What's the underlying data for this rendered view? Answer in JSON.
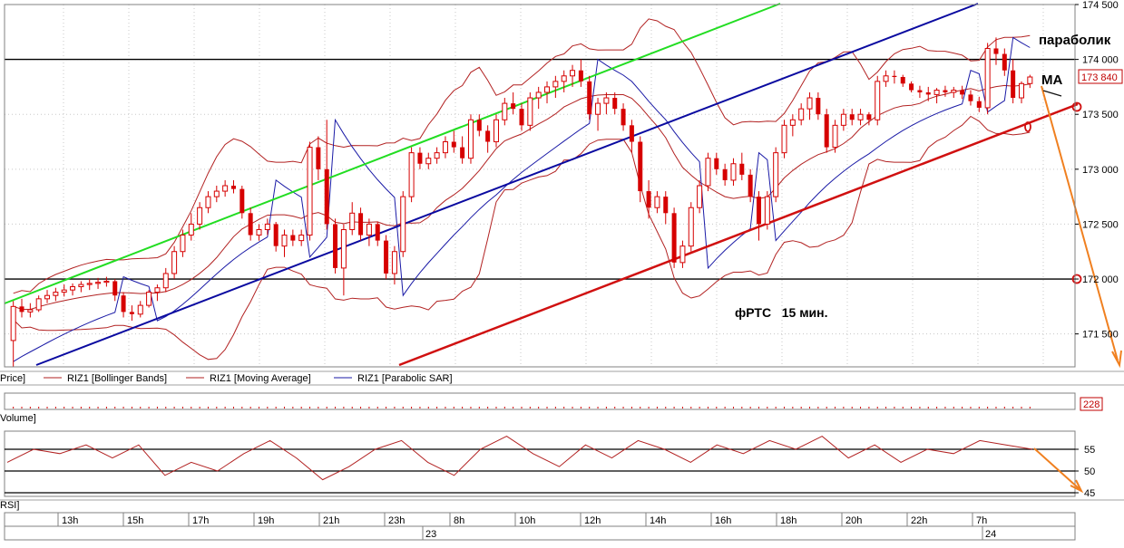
{
  "chart_data": {
    "type": "candlestick",
    "instrument_caption": "фРТС   15 мин.",
    "price_axis": {
      "ylim": [
        171200,
        174500
      ],
      "tick_labels": [
        "174 500",
        "174 000",
        "173 500",
        "173 000",
        "172 500",
        "172 000",
        "171 500"
      ],
      "tick_values": [
        174500,
        174000,
        173500,
        173000,
        172500,
        172000,
        171500
      ],
      "last_price_label": "173 840",
      "last_price": 173840
    },
    "horizontal_levels": [
      174000,
      172000
    ],
    "annotations": {
      "parabolic": "параболик",
      "ma": "MA"
    },
    "legend": {
      "price": "Price]",
      "bollinger": "RIZ1 [Bollinger Bands]",
      "ma": "RIZ1 [Moving Average]",
      "sar": "RIZ1 [Parabolic SAR]"
    },
    "volume_panel": {
      "label": "Volume]",
      "value_label": "228"
    },
    "rsi_panel": {
      "label": "RSI]",
      "levels": [
        55,
        50,
        45
      ],
      "level_labels": [
        "55",
        "50",
        "45"
      ]
    },
    "time_axis": {
      "hour_labels": [
        "13h",
        "15h",
        "17h",
        "19h",
        "21h",
        "23h",
        "8h",
        "10h",
        "12h",
        "14h",
        "16h",
        "18h",
        "20h",
        "22h",
        "7h"
      ],
      "day_labels": [
        "23",
        "24"
      ]
    },
    "candles": [
      [
        171440,
        171800,
        171200,
        171750
      ],
      [
        171750,
        171820,
        171650,
        171700
      ],
      [
        171700,
        171780,
        171650,
        171720
      ],
      [
        171720,
        171850,
        171700,
        171820
      ],
      [
        171820,
        171900,
        171780,
        171850
      ],
      [
        171850,
        171920,
        171800,
        171880
      ],
      [
        171880,
        171950,
        171840,
        171900
      ],
      [
        171900,
        171960,
        171850,
        171930
      ],
      [
        171930,
        171980,
        171880,
        171950
      ],
      [
        171950,
        172000,
        171900,
        171960
      ],
      [
        171960,
        172010,
        171910,
        171970
      ],
      [
        171970,
        172020,
        171930,
        171980
      ],
      [
        171980,
        172000,
        171800,
        171850
      ],
      [
        171850,
        171880,
        171650,
        171700
      ],
      [
        171700,
        171760,
        171620,
        171680
      ],
      [
        171680,
        171800,
        171650,
        171760
      ],
      [
        171760,
        171900,
        171740,
        171880
      ],
      [
        171880,
        171950,
        171800,
        171920
      ],
      [
        171920,
        172100,
        171880,
        172050
      ],
      [
        172050,
        172300,
        172000,
        172250
      ],
      [
        172250,
        172450,
        172200,
        172400
      ],
      [
        172400,
        172600,
        172350,
        172500
      ],
      [
        172500,
        172700,
        172450,
        172650
      ],
      [
        172650,
        172800,
        172600,
        172750
      ],
      [
        172750,
        172850,
        172700,
        172800
      ],
      [
        172800,
        172900,
        172750,
        172850
      ],
      [
        172850,
        172900,
        172780,
        172820
      ],
      [
        172820,
        172850,
        172550,
        172600
      ],
      [
        172600,
        172650,
        172350,
        172400
      ],
      [
        172400,
        172500,
        172350,
        172450
      ],
      [
        172450,
        172550,
        172400,
        172500
      ],
      [
        172500,
        172520,
        172250,
        172300
      ],
      [
        172300,
        172450,
        172200,
        172400
      ],
      [
        172400,
        172450,
        172300,
        172350
      ],
      [
        172350,
        172450,
        172300,
        172400
      ],
      [
        172400,
        173250,
        172350,
        173200
      ],
      [
        173200,
        173300,
        172900,
        173000
      ],
      [
        173000,
        173450,
        172450,
        172500
      ],
      [
        172500,
        172550,
        172050,
        172100
      ],
      [
        172100,
        172500,
        171850,
        172450
      ],
      [
        172450,
        172700,
        172400,
        172600
      ],
      [
        172600,
        172650,
        172350,
        172400
      ],
      [
        172400,
        172550,
        172300,
        172500
      ],
      [
        172500,
        172520,
        172300,
        172350
      ],
      [
        172350,
        172400,
        172000,
        172050
      ],
      [
        172050,
        172300,
        171950,
        172250
      ],
      [
        172250,
        172800,
        172200,
        172750
      ],
      [
        172750,
        173200,
        172700,
        173150
      ],
      [
        173150,
        173200,
        173000,
        173050
      ],
      [
        173050,
        173150,
        173000,
        173100
      ],
      [
        173100,
        173200,
        173050,
        173150
      ],
      [
        173150,
        173300,
        173100,
        173250
      ],
      [
        173250,
        173350,
        173150,
        173200
      ],
      [
        173200,
        173300,
        173050,
        173100
      ],
      [
        173100,
        173500,
        173050,
        173450
      ],
      [
        173450,
        173500,
        173300,
        173350
      ],
      [
        173350,
        173400,
        173150,
        173250
      ],
      [
        173250,
        173500,
        173200,
        173450
      ],
      [
        173450,
        173650,
        173400,
        173600
      ],
      [
        173600,
        173700,
        173500,
        173550
      ],
      [
        173550,
        173600,
        173350,
        173400
      ],
      [
        173400,
        173700,
        173350,
        173650
      ],
      [
        173650,
        173750,
        173550,
        173700
      ],
      [
        173700,
        173800,
        173600,
        173750
      ],
      [
        173750,
        173850,
        173650,
        173800
      ],
      [
        173800,
        173900,
        173700,
        173850
      ],
      [
        173850,
        173950,
        173750,
        173900
      ],
      [
        173900,
        174000,
        173750,
        173800
      ],
      [
        173800,
        173850,
        173450,
        173500
      ],
      [
        173500,
        173650,
        173350,
        173600
      ],
      [
        173600,
        173700,
        173500,
        173650
      ],
      [
        173650,
        173700,
        173500,
        173550
      ],
      [
        173550,
        173600,
        173350,
        173400
      ],
      [
        173400,
        173450,
        173150,
        173250
      ],
      [
        173250,
        173300,
        172700,
        172800
      ],
      [
        172800,
        172900,
        172550,
        172650
      ],
      [
        172650,
        172800,
        172600,
        172750
      ],
      [
        172750,
        172800,
        172500,
        172600
      ],
      [
        172600,
        172650,
        172100,
        172150
      ],
      [
        172150,
        172350,
        172100,
        172300
      ],
      [
        172300,
        172700,
        172250,
        172650
      ],
      [
        172650,
        172900,
        172600,
        172850
      ],
      [
        172850,
        173150,
        172800,
        173100
      ],
      [
        173100,
        173150,
        172950,
        173000
      ],
      [
        173000,
        173050,
        172850,
        172900
      ],
      [
        172900,
        173100,
        172850,
        173050
      ],
      [
        173050,
        173150,
        172900,
        172950
      ],
      [
        172950,
        173000,
        172700,
        172750
      ],
      [
        172750,
        172800,
        172350,
        172500
      ],
      [
        172500,
        172800,
        172450,
        172750
      ],
      [
        172750,
        173200,
        172700,
        173150
      ],
      [
        173150,
        173450,
        173100,
        173400
      ],
      [
        173400,
        173500,
        173300,
        173450
      ],
      [
        173450,
        173600,
        173400,
        173550
      ],
      [
        173550,
        173700,
        173450,
        173650
      ],
      [
        173650,
        173700,
        173450,
        173500
      ],
      [
        173500,
        173550,
        173150,
        173200
      ],
      [
        173200,
        173450,
        173150,
        173400
      ],
      [
        173400,
        173550,
        173350,
        173500
      ],
      [
        173500,
        173550,
        173400,
        173450
      ],
      [
        173450,
        173550,
        173400,
        173500
      ],
      [
        173500,
        173520,
        173400,
        173450
      ],
      [
        173450,
        173850,
        173400,
        173800
      ],
      [
        173800,
        173900,
        173750,
        173850
      ],
      [
        173850,
        173900,
        173780,
        173840
      ],
      [
        173840,
        173860,
        173750,
        173780
      ],
      [
        173780,
        173800,
        173700,
        173720
      ],
      [
        173720,
        173760,
        173650,
        173700
      ],
      [
        173700,
        173750,
        173620,
        173680
      ],
      [
        173680,
        173740,
        173600,
        173720
      ],
      [
        173720,
        173760,
        173660,
        173700
      ],
      [
        173700,
        173750,
        173650,
        173720
      ],
      [
        173720,
        173760,
        173640,
        173680
      ],
      [
        173680,
        173720,
        173580,
        173620
      ],
      [
        173620,
        173660,
        173520,
        173560
      ],
      [
        173560,
        174150,
        173500,
        174100
      ],
      [
        174100,
        174200,
        173950,
        174050
      ],
      [
        174050,
        174100,
        173850,
        173900
      ],
      [
        173900,
        174000,
        173600,
        173650
      ],
      [
        173650,
        173800,
        173600,
        173780
      ],
      [
        173780,
        173860,
        173740,
        173840
      ]
    ],
    "rsi_values": [
      52,
      55,
      54,
      56,
      53,
      56,
      49,
      52,
      50,
      54,
      57,
      53,
      48,
      51,
      55,
      57,
      52,
      49,
      55,
      58,
      54,
      51,
      56,
      53,
      57,
      55,
      52,
      56,
      54,
      57,
      55,
      58,
      53,
      56,
      52,
      55,
      54,
      57,
      56,
      55
    ]
  }
}
